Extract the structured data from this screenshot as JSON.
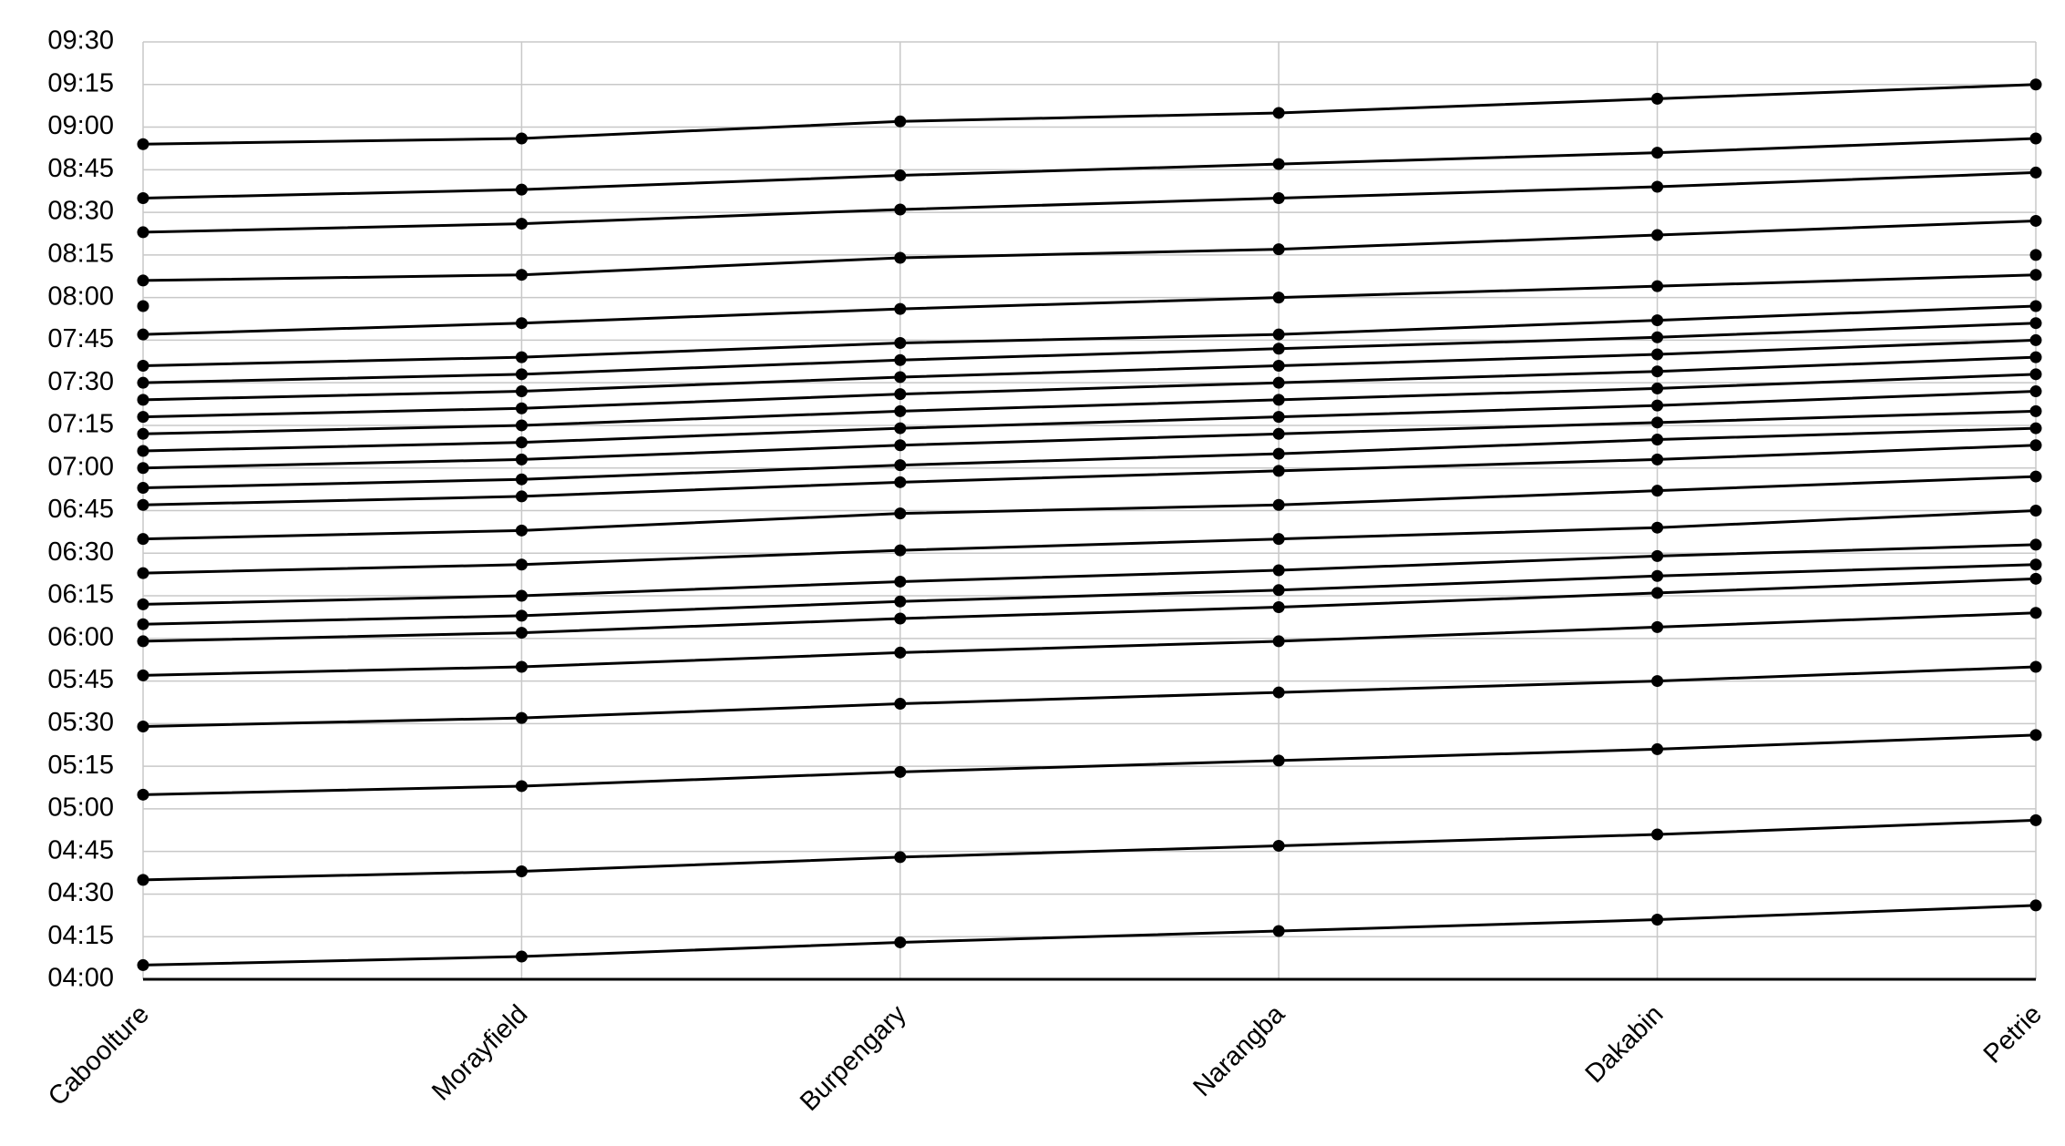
{
  "chart_data": {
    "type": "line",
    "categories": [
      "Caboolture",
      "Morayfield",
      "Burpengary",
      "Narangba",
      "Dakabin",
      "Petrie"
    ],
    "color": "#000000",
    "grid": true,
    "ylim": [
      240,
      570
    ],
    "yticks": [
      {
        "value": 240,
        "label": "04:00"
      },
      {
        "value": 255,
        "label": "04:15"
      },
      {
        "value": 270,
        "label": "04:30"
      },
      {
        "value": 285,
        "label": "04:45"
      },
      {
        "value": 300,
        "label": "05:00"
      },
      {
        "value": 315,
        "label": "05:15"
      },
      {
        "value": 330,
        "label": "05:30"
      },
      {
        "value": 345,
        "label": "05:45"
      },
      {
        "value": 360,
        "label": "06:00"
      },
      {
        "value": 375,
        "label": "06:15"
      },
      {
        "value": 390,
        "label": "06:30"
      },
      {
        "value": 405,
        "label": "06:45"
      },
      {
        "value": 420,
        "label": "07:00"
      },
      {
        "value": 435,
        "label": "07:15"
      },
      {
        "value": 450,
        "label": "07:30"
      },
      {
        "value": 465,
        "label": "07:45"
      },
      {
        "value": 480,
        "label": "08:00"
      },
      {
        "value": 495,
        "label": "08:15"
      },
      {
        "value": 510,
        "label": "08:30"
      },
      {
        "value": 525,
        "label": "08:45"
      },
      {
        "value": 540,
        "label": "09:00"
      },
      {
        "value": 555,
        "label": "09:15"
      },
      {
        "value": 570,
        "label": "09:30"
      }
    ],
    "series": [
      {
        "values": [
          245,
          248,
          253,
          257,
          261,
          266
        ]
      },
      {
        "values": [
          275,
          278,
          283,
          287,
          291,
          296
        ]
      },
      {
        "values": [
          305,
          308,
          313,
          317,
          321,
          326
        ]
      },
      {
        "values": [
          329,
          332,
          337,
          341,
          345,
          350
        ]
      },
      {
        "values": [
          347,
          350,
          355,
          359,
          364,
          369
        ]
      },
      {
        "values": [
          359,
          362,
          367,
          371,
          376,
          381
        ]
      },
      {
        "values": [
          365,
          368,
          373,
          377,
          382,
          386
        ]
      },
      {
        "values": [
          372,
          375,
          380,
          384,
          389,
          393
        ]
      },
      {
        "values": [
          383,
          386,
          391,
          395,
          399,
          405
        ]
      },
      {
        "values": [
          395,
          398,
          404,
          407,
          412,
          417
        ]
      },
      {
        "values": [
          407,
          410,
          415,
          419,
          423,
          428
        ]
      },
      {
        "values": [
          413,
          416,
          421,
          425,
          430,
          434
        ]
      },
      {
        "values": [
          420,
          423,
          428,
          432,
          436,
          440
        ]
      },
      {
        "values": [
          426,
          429,
          434,
          438,
          442,
          447
        ]
      },
      {
        "values": [
          432,
          435,
          440,
          444,
          448,
          453
        ]
      },
      {
        "values": [
          438,
          441,
          446,
          450,
          454,
          459
        ]
      },
      {
        "values": [
          444,
          447,
          452,
          456,
          460,
          465
        ]
      },
      {
        "values": [
          450,
          453,
          458,
          462,
          466,
          471
        ]
      },
      {
        "values": [
          456,
          459,
          464,
          467,
          472,
          477
        ]
      },
      {
        "values": [
          477,
          null,
          null,
          null,
          null,
          null
        ]
      },
      {
        "values": [
          null,
          null,
          null,
          null,
          null,
          495
        ]
      },
      {
        "values": [
          467,
          471,
          476,
          480,
          484,
          488
        ]
      },
      {
        "values": [
          486,
          488,
          494,
          497,
          502,
          507
        ]
      },
      {
        "values": [
          503,
          506,
          511,
          515,
          519,
          524
        ]
      },
      {
        "values": [
          515,
          518,
          523,
          527,
          531,
          536
        ]
      },
      {
        "values": [
          534,
          536,
          542,
          545,
          550,
          555
        ]
      }
    ]
  }
}
